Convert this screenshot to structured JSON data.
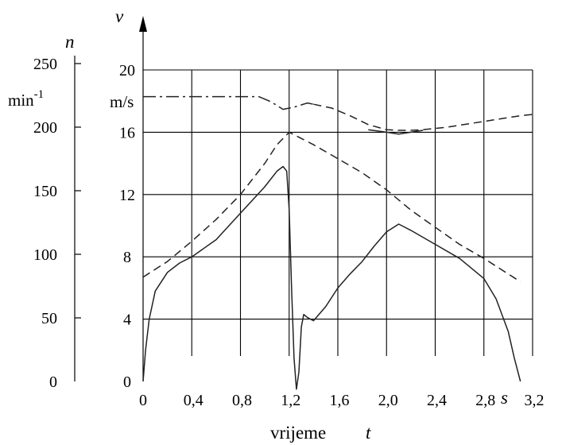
{
  "chart_data": {
    "type": "line",
    "title": "",
    "xlabel": "vrijeme",
    "xlabel_symbol": "t",
    "x_unit": "s",
    "xlim": [
      0,
      3.2
    ],
    "x_ticks": [
      "0",
      "0,4",
      "0,8",
      "1,2",
      "1,6",
      "2,0",
      "2,4",
      "2,8",
      "3,2"
    ],
    "left_axis": {
      "symbol": "n",
      "unit": "min-1",
      "unit_base": "min",
      "unit_exp": "-1",
      "ylim": [
        0,
        250
      ],
      "ticks": [
        "0",
        "50",
        "100",
        "150",
        "200",
        "250"
      ]
    },
    "right_axis": {
      "symbol": "v",
      "unit": "m/s",
      "ylim": [
        0,
        20
      ],
      "ticks": [
        "0",
        "4",
        "8",
        "12",
        "16",
        "20"
      ]
    },
    "grid": true,
    "series": [
      {
        "axis": "right",
        "style": "solid",
        "points": [
          [
            0,
            0
          ],
          [
            0.02,
            2
          ],
          [
            0.05,
            4
          ],
          [
            0.1,
            5.8
          ],
          [
            0.2,
            7
          ],
          [
            0.3,
            7.6
          ],
          [
            0.4,
            8
          ],
          [
            0.6,
            9.1
          ],
          [
            0.8,
            10.8
          ],
          [
            1.0,
            12.5
          ],
          [
            1.1,
            13.5
          ],
          [
            1.15,
            13.8
          ],
          [
            1.18,
            13.5
          ],
          [
            1.2,
            11
          ],
          [
            1.22,
            6
          ],
          [
            1.24,
            1.5
          ],
          [
            1.26,
            -0.5
          ],
          [
            1.28,
            0.6
          ],
          [
            1.3,
            3.5
          ],
          [
            1.32,
            4.3
          ],
          [
            1.35,
            4.1
          ],
          [
            1.4,
            3.9
          ],
          [
            1.5,
            4.8
          ],
          [
            1.6,
            6
          ],
          [
            1.7,
            6.9
          ],
          [
            1.8,
            7.7
          ],
          [
            1.9,
            8.7
          ],
          [
            2.0,
            9.6
          ],
          [
            2.1,
            10.1
          ],
          [
            2.2,
            9.7
          ],
          [
            2.4,
            8.8
          ],
          [
            2.6,
            7.9
          ],
          [
            2.8,
            6.6
          ],
          [
            2.9,
            5.3
          ],
          [
            3.0,
            3.2
          ],
          [
            3.05,
            1.5
          ],
          [
            3.1,
            0
          ]
        ]
      },
      {
        "axis": "right",
        "style": "dashed",
        "points": [
          [
            0,
            6.7
          ],
          [
            0.2,
            7.7
          ],
          [
            0.4,
            9
          ],
          [
            0.6,
            10.4
          ],
          [
            0.8,
            12
          ],
          [
            1.0,
            14
          ],
          [
            1.1,
            15.2
          ],
          [
            1.2,
            16
          ],
          [
            1.4,
            15.2
          ],
          [
            1.6,
            14.3
          ],
          [
            1.8,
            13.4
          ],
          [
            2.0,
            12.3
          ],
          [
            2.2,
            11
          ],
          [
            2.4,
            9.9
          ],
          [
            2.6,
            8.8
          ],
          [
            2.8,
            7.9
          ],
          [
            3.0,
            6.9
          ],
          [
            3.1,
            6.4
          ]
        ]
      },
      {
        "axis": "left",
        "style": "dash-dot",
        "points": [
          [
            0,
            224
          ],
          [
            0.2,
            224
          ],
          [
            0.4,
            224
          ],
          [
            0.6,
            224
          ],
          [
            0.8,
            224
          ],
          [
            0.95,
            224
          ],
          [
            1.05,
            220
          ],
          [
            1.15,
            214
          ],
          [
            1.25,
            216
          ],
          [
            1.35,
            219
          ],
          [
            1.4,
            218
          ]
        ]
      },
      {
        "axis": "left",
        "style": "dashed",
        "points": [
          [
            1.4,
            218
          ],
          [
            1.55,
            215
          ],
          [
            1.7,
            209
          ],
          [
            1.85,
            202
          ],
          [
            2.0,
            198
          ],
          [
            2.1,
            197.5
          ],
          [
            2.2,
            197.5
          ],
          [
            2.3,
            198
          ],
          [
            2.5,
            200
          ],
          [
            2.7,
            203
          ],
          [
            2.9,
            206
          ],
          [
            3.1,
            209
          ],
          [
            3.2,
            210
          ]
        ]
      },
      {
        "axis": "left",
        "style": "solid",
        "points": [
          [
            1.85,
            198
          ],
          [
            2.0,
            196
          ],
          [
            2.1,
            194.5
          ],
          [
            2.2,
            196
          ],
          [
            2.3,
            197.5
          ]
        ]
      }
    ]
  }
}
